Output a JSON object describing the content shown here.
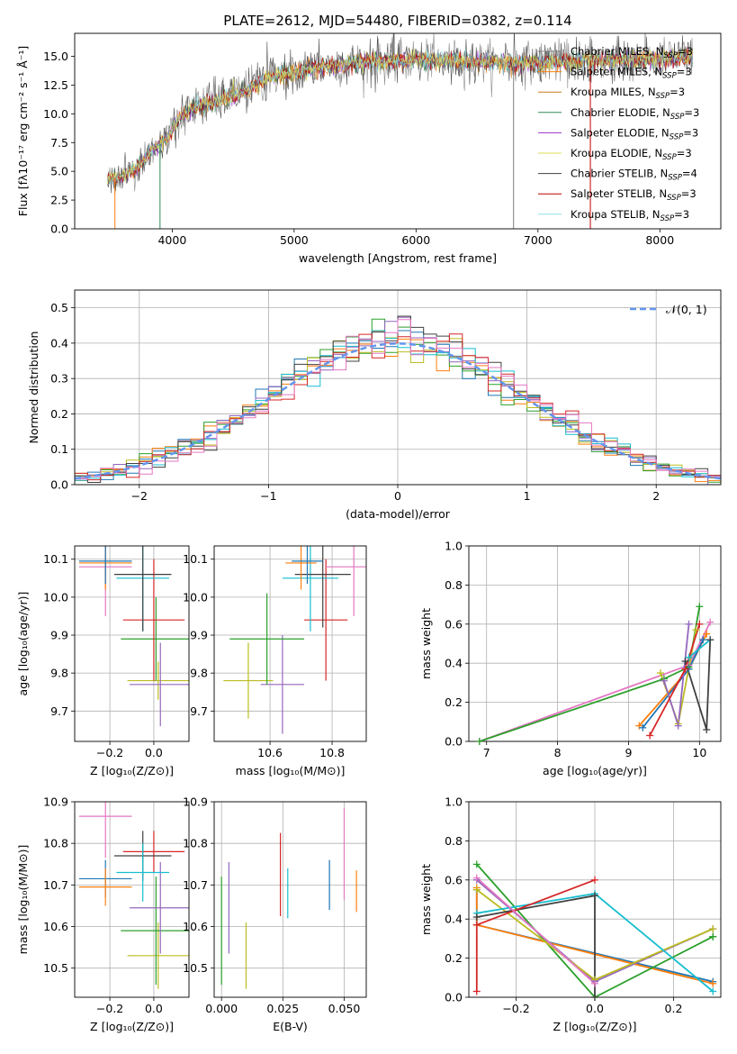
{
  "chart_data": {
    "colors": [
      "#1f77b4",
      "#ff7f0e",
      "#2ca02c",
      "#9467bd",
      "#bcbd22",
      "#17becf",
      "#404040",
      "#d62728",
      "#e377c2"
    ],
    "panels": {
      "spectrum": {
        "type": "line",
        "title": "PLATE=2612, MJD=54480, FIBERID=0382, z=0.114",
        "xlabel": "wavelength [Angstrom, rest frame]",
        "ylabel": "Flux [fλ10⁻¹⁷ erg cm⁻² s⁻¹ Å⁻¹]",
        "xlim": [
          3200,
          8500
        ],
        "ylim": [
          0,
          17
        ],
        "xticks": [
          4000,
          5000,
          6000,
          7000,
          8000
        ],
        "yticks": [
          0.0,
          2.5,
          5.0,
          7.5,
          10.0,
          12.5,
          15.0
        ],
        "x_range": [
          3470,
          8270
        ],
        "continuum": [
          [
            3470,
            4.3
          ],
          [
            3600,
            4.6
          ],
          [
            3700,
            5.2
          ],
          [
            3850,
            7.0
          ],
          [
            3950,
            7.8
          ],
          [
            4050,
            9.6
          ],
          [
            4200,
            10.6
          ],
          [
            4400,
            11.2
          ],
          [
            4600,
            12.0
          ],
          [
            4800,
            13.2
          ],
          [
            5000,
            13.6
          ],
          [
            5200,
            14.0
          ],
          [
            5400,
            14.3
          ],
          [
            5600,
            14.5
          ],
          [
            5800,
            14.6
          ],
          [
            6000,
            14.7
          ],
          [
            6200,
            14.6
          ],
          [
            6400,
            14.6
          ],
          [
            6600,
            14.5
          ],
          [
            6800,
            14.4
          ],
          [
            7000,
            14.4
          ],
          [
            7200,
            14.5
          ],
          [
            7400,
            14.6
          ],
          [
            7600,
            14.6
          ],
          [
            7800,
            14.7
          ],
          [
            8000,
            14.8
          ],
          [
            8270,
            14.9
          ]
        ],
        "legend": [
          "Chabrier MILES, N_SSP=3",
          "Salpeter MILES, N_SSP=3",
          "Kroupa MILES, N_SSP=3",
          "Chabrier ELODIE, N_SSP=3",
          "Salpeter ELODIE, N_SSP=3",
          "Kroupa ELODIE, N_SSP=3",
          "Chabrier STELIB, N_SSP=4",
          "Salpeter STELIB, N_SSP=3",
          "Kroupa STELIB, N_SSP=3"
        ],
        "legend_colors": [
          "#808080",
          "#ff7f0e",
          "#cc7a1a",
          "#2e8b57",
          "#9932cc",
          "#dddd55",
          "#404040",
          "#c00000",
          "#8fdfe6"
        ]
      },
      "histogram": {
        "type": "histogram",
        "xlabel": "(data-model)/error",
        "ylabel": "Normed distribution",
        "xlim": [
          -2.5,
          2.5
        ],
        "ylim": [
          0,
          0.55
        ],
        "xticks": [
          -2,
          -1,
          0,
          1,
          2
        ],
        "yticks": [
          0.0,
          0.1,
          0.2,
          0.3,
          0.4,
          0.5
        ],
        "legend": "𝒩(0, 1)",
        "bin_width": 0.1
      },
      "age_vs_z": {
        "type": "errorbar",
        "xlabel": "Z [log₁₀(Z/Z⊙)]",
        "ylabel": "age  [log₁₀(age/yr)]",
        "xlim": [
          -0.36,
          0.16
        ],
        "ylim": [
          9.62,
          10.135
        ],
        "xticks": [
          -0.2,
          0.0
        ],
        "xticklabels": [
          "−0.2",
          "0.0"
        ],
        "yticks": [
          9.7,
          9.8,
          9.9,
          10.0,
          10.1
        ],
        "points": [
          {
            "c": 4,
            "x": 0.02,
            "xe": 0.14,
            "y": 9.78,
            "ye": 0.05
          },
          {
            "c": 3,
            "x": 0.03,
            "xe": 0.14,
            "y": 9.77,
            "ye": 0.11
          },
          {
            "c": 2,
            "x": 0.01,
            "xe": 0.16,
            "y": 9.89,
            "ye": 0.11
          },
          {
            "c": 7,
            "x": 0.0,
            "xe": 0.14,
            "y": 9.94,
            "ye": 0.16
          },
          {
            "c": 5,
            "x": -0.05,
            "xe": 0.12,
            "y": 10.05,
            "ye": 0.14
          },
          {
            "c": 6,
            "x": -0.05,
            "xe": 0.13,
            "y": 10.06,
            "ye": 0.15
          },
          {
            "c": 8,
            "x": -0.22,
            "xe": 0.12,
            "y": 10.08,
            "ye": 0.13
          },
          {
            "c": 1,
            "x": -0.22,
            "xe": 0.12,
            "y": 10.09,
            "ye": 0.07
          },
          {
            "c": 0,
            "x": -0.22,
            "xe": 0.12,
            "y": 10.095,
            "ye": 0.06
          }
        ]
      },
      "age_vs_mass": {
        "type": "errorbar",
        "xlabel": "mass [log₁₀(M/M⊙)]",
        "ylabel": "",
        "xlim": [
          10.42,
          10.91
        ],
        "ylim": [
          9.62,
          10.135
        ],
        "xticks": [
          10.6,
          10.8
        ],
        "yticks": [
          9.7,
          9.8,
          9.9,
          10.0,
          10.1
        ],
        "points": [
          {
            "c": 4,
            "x": 10.53,
            "xe": 0.08,
            "y": 9.78,
            "ye": 0.1
          },
          {
            "c": 3,
            "x": 10.64,
            "xe": 0.07,
            "y": 9.77,
            "ye": 0.13
          },
          {
            "c": 2,
            "x": 10.59,
            "xe": 0.12,
            "y": 9.89,
            "ye": 0.12
          },
          {
            "c": 7,
            "x": 10.78,
            "xe": 0.07,
            "y": 9.94,
            "ye": 0.16
          },
          {
            "c": 5,
            "x": 10.73,
            "xe": 0.09,
            "y": 10.05,
            "ye": 0.14
          },
          {
            "c": 6,
            "x": 10.77,
            "xe": 0.09,
            "y": 10.06,
            "ye": 0.14
          },
          {
            "c": 8,
            "x": 10.87,
            "xe": 0.09,
            "y": 10.08,
            "ye": 0.13
          },
          {
            "c": 1,
            "x": 10.7,
            "xe": 0.05,
            "y": 10.09,
            "ye": 0.07
          },
          {
            "c": 0,
            "x": 10.72,
            "xe": 0.05,
            "y": 10.095,
            "ye": 0.06
          }
        ]
      },
      "weight_vs_age": {
        "type": "line",
        "xlabel": "age  [log₁₀(age/yr)]",
        "ylabel": "mass weight",
        "xlim": [
          6.75,
          10.3
        ],
        "ylim": [
          0,
          1
        ],
        "xticks": [
          7,
          8,
          9,
          10
        ],
        "yticks": [
          0.0,
          0.2,
          0.4,
          0.6,
          0.8,
          1.0
        ],
        "series": [
          {
            "c": 8,
            "x": [
              6.9,
              9.85,
              10.15
            ],
            "y": [
              0.0,
              0.39,
              0.61
            ]
          },
          {
            "c": 2,
            "x": [
              6.9,
              9.5,
              9.85,
              10.0
            ],
            "y": [
              0.0,
              0.32,
              0.38,
              0.69
            ]
          },
          {
            "c": 1,
            "x": [
              9.15,
              9.85,
              10.1
            ],
            "y": [
              0.08,
              0.37,
              0.55
            ]
          },
          {
            "c": 0,
            "x": [
              9.2,
              9.85,
              10.05
            ],
            "y": [
              0.07,
              0.37,
              0.52
            ]
          },
          {
            "c": 4,
            "x": [
              9.45,
              9.7,
              9.95
            ],
            "y": [
              0.35,
              0.09,
              0.57
            ]
          },
          {
            "c": 3,
            "x": [
              9.5,
              9.7,
              9.85
            ],
            "y": [
              0.31,
              0.08,
              0.6
            ]
          },
          {
            "c": 5,
            "x": [
              9.85,
              10.15
            ],
            "y": [
              0.43,
              0.52
            ]
          },
          {
            "c": 6,
            "x": [
              9.8,
              10.1,
              10.15
            ],
            "y": [
              0.41,
              0.06,
              0.52
            ]
          },
          {
            "c": 7,
            "x": [
              9.3,
              9.8,
              10.0
            ],
            "y": [
              0.03,
              0.37,
              0.6
            ]
          }
        ]
      },
      "mass_vs_z": {
        "type": "errorbar",
        "xlabel": "Z [log₁₀(Z/Z⊙)]",
        "ylabel": "mass [log₁₀(M/M⊙)]",
        "xlim": [
          -0.36,
          0.16
        ],
        "ylim": [
          10.43,
          10.9
        ],
        "xticks": [
          -0.2,
          0.0
        ],
        "xticklabels": [
          "−0.2",
          "0.0"
        ],
        "yticks": [
          10.5,
          10.6,
          10.7,
          10.8,
          10.9
        ],
        "points": [
          {
            "c": 4,
            "x": 0.02,
            "xe": 0.14,
            "y": 10.53,
            "ye": 0.08
          },
          {
            "c": 2,
            "x": 0.01,
            "xe": 0.16,
            "y": 10.59,
            "ye": 0.13
          },
          {
            "c": 3,
            "x": 0.03,
            "xe": 0.14,
            "y": 10.645,
            "ye": 0.11
          },
          {
            "c": 7,
            "x": 0.0,
            "xe": 0.14,
            "y": 10.78,
            "ye": 0.05
          },
          {
            "c": 6,
            "x": -0.05,
            "xe": 0.13,
            "y": 10.77,
            "ye": 0.06
          },
          {
            "c": 5,
            "x": -0.05,
            "xe": 0.12,
            "y": 10.73,
            "ye": 0.07
          },
          {
            "c": 8,
            "x": -0.22,
            "xe": 0.12,
            "y": 10.865,
            "ye": 0.1
          },
          {
            "c": 0,
            "x": -0.22,
            "xe": 0.12,
            "y": 10.715,
            "ye": 0.045
          },
          {
            "c": 1,
            "x": -0.22,
            "xe": 0.12,
            "y": 10.695,
            "ye": 0.045
          }
        ]
      },
      "mass_vs_ebv": {
        "type": "errorbar",
        "xlabel": "E(B-V)",
        "ylabel": "",
        "xlim": [
          -0.003,
          0.059
        ],
        "ylim": [
          10.43,
          10.9
        ],
        "xticks": [
          0.0,
          0.025,
          0.05
        ],
        "xticklabels": [
          "0.000",
          "0.025",
          "0.050"
        ],
        "yticks": [
          10.5,
          10.6,
          10.7,
          10.8,
          10.9
        ],
        "points": [
          {
            "c": 2,
            "x": 0.0,
            "y": 10.59,
            "ye": 0.13
          },
          {
            "c": 3,
            "x": 0.003,
            "y": 10.645,
            "ye": 0.11
          },
          {
            "c": 4,
            "x": 0.01,
            "y": 10.53,
            "ye": 0.08
          },
          {
            "c": 7,
            "x": 0.024,
            "y": 10.725,
            "ye": 0.1
          },
          {
            "c": 5,
            "x": 0.027,
            "y": 10.68,
            "ye": 0.06
          },
          {
            "c": 0,
            "x": 0.044,
            "y": 10.7,
            "ye": 0.06
          },
          {
            "c": 8,
            "x": 0.05,
            "y": 10.775,
            "ye": 0.11
          },
          {
            "c": 1,
            "x": 0.055,
            "y": 10.685,
            "ye": 0.05
          }
        ]
      },
      "weight_vs_z": {
        "type": "line",
        "xlabel": "Z [log₁₀(Z/Z⊙)]",
        "ylabel": "mass weight",
        "xlim": [
          -0.32,
          0.32
        ],
        "ylim": [
          0,
          1
        ],
        "xticks": [
          -0.2,
          0.0,
          0.2
        ],
        "xticklabels": [
          "−0.2",
          "0.0",
          "0.2"
        ],
        "yticks": [
          0.0,
          0.2,
          0.4,
          0.6,
          0.8,
          1.0
        ],
        "series": [
          {
            "c": 0,
            "x": [
              -0.3,
              -0.3,
              0.3
            ],
            "y": [
              0.55,
              0.37,
              0.08
            ]
          },
          {
            "c": 1,
            "x": [
              -0.3,
              -0.3,
              0.3
            ],
            "y": [
              0.56,
              0.37,
              0.07
            ]
          },
          {
            "c": 2,
            "x": [
              -0.3,
              0.0,
              0.3,
              0.3
            ],
            "y": [
              0.68,
              0.0,
              0.31,
              0.31
            ]
          },
          {
            "c": 3,
            "x": [
              -0.3,
              0.0,
              0.3
            ],
            "y": [
              0.6,
              0.08,
              0.35
            ]
          },
          {
            "c": 4,
            "x": [
              -0.3,
              0.0,
              0.3
            ],
            "y": [
              0.55,
              0.09,
              0.35
            ]
          },
          {
            "c": 5,
            "x": [
              -0.3,
              0.0,
              0.3
            ],
            "y": [
              0.43,
              0.53,
              0.03
            ]
          },
          {
            "c": 6,
            "x": [
              -0.3,
              0.0,
              0.0
            ],
            "y": [
              0.41,
              0.52,
              0.0
            ]
          },
          {
            "c": 7,
            "x": [
              -0.3,
              -0.3,
              0.0
            ],
            "y": [
              0.03,
              0.37,
              0.6
            ]
          },
          {
            "c": 8,
            "x": [
              -0.3,
              0.0
            ],
            "y": [
              0.61,
              0.07
            ]
          }
        ]
      }
    }
  }
}
